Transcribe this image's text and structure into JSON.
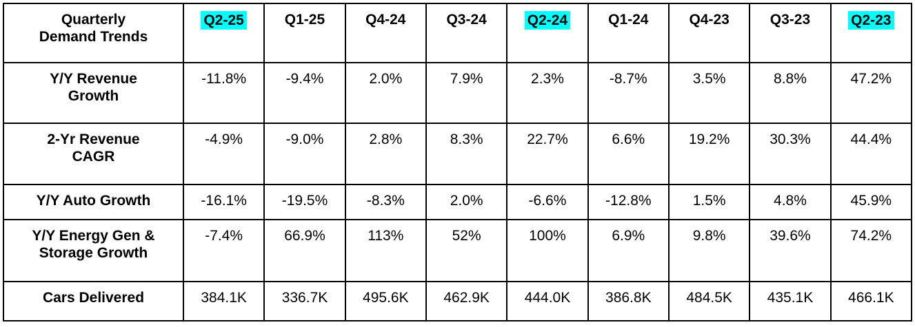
{
  "table": {
    "corner_label": "Quarterly\nDemand Trends",
    "highlight_color": "#00FFFF",
    "columns": [
      {
        "label": "Q2-25",
        "highlighted": true
      },
      {
        "label": "Q1-25",
        "highlighted": false
      },
      {
        "label": "Q4-24",
        "highlighted": false
      },
      {
        "label": "Q3-24",
        "highlighted": false
      },
      {
        "label": "Q2-24",
        "highlighted": true
      },
      {
        "label": "Q1-24",
        "highlighted": false
      },
      {
        "label": "Q4-23",
        "highlighted": false
      },
      {
        "label": "Q3-23",
        "highlighted": false
      },
      {
        "label": "Q2-23",
        "highlighted": true
      }
    ],
    "rows": [
      {
        "label": "Y/Y Revenue\nGrowth",
        "values": [
          "-11.8%",
          "-9.4%",
          "2.0%",
          "7.9%",
          "2.3%",
          "-8.7%",
          "3.5%",
          "8.8%",
          "47.2%"
        ]
      },
      {
        "label": "2-Yr Revenue\nCAGR",
        "values": [
          "-4.9%",
          "-9.0%",
          "2.8%",
          "8.3%",
          "22.7%",
          "6.6%",
          "19.2%",
          "30.3%",
          "44.4%"
        ]
      },
      {
        "label": "Y/Y Auto Growth",
        "values": [
          "-16.1%",
          "-19.5%",
          "-8.3%",
          "2.0%",
          "-6.6%",
          "-12.8%",
          "1.5%",
          "4.8%",
          "45.9%"
        ]
      },
      {
        "label": "Y/Y Energy Gen &\nStorage Growth",
        "values": [
          "-7.4%",
          "66.9%",
          "113%",
          "52%",
          "100%",
          "6.9%",
          "9.8%",
          "39.6%",
          "74.2%"
        ]
      },
      {
        "label": "Cars Delivered",
        "values": [
          "384.1K",
          "336.7K",
          "495.6K",
          "462.9K",
          "444.0K",
          "386.8K",
          "484.5K",
          "435.1K",
          "466.1K"
        ]
      }
    ]
  },
  "chart_data": {
    "type": "table",
    "title": "Quarterly Demand Trends",
    "categories": [
      "Q2-25",
      "Q1-25",
      "Q4-24",
      "Q3-24",
      "Q2-24",
      "Q1-24",
      "Q4-23",
      "Q3-23",
      "Q2-23"
    ],
    "highlighted_categories": [
      "Q2-25",
      "Q2-24",
      "Q2-23"
    ],
    "series": [
      {
        "name": "Y/Y Revenue Growth",
        "unit": "%",
        "values": [
          -11.8,
          -9.4,
          2.0,
          7.9,
          2.3,
          -8.7,
          3.5,
          8.8,
          47.2
        ]
      },
      {
        "name": "2-Yr Revenue CAGR",
        "unit": "%",
        "values": [
          -4.9,
          -9.0,
          2.8,
          8.3,
          22.7,
          6.6,
          19.2,
          30.3,
          44.4
        ]
      },
      {
        "name": "Y/Y Auto Growth",
        "unit": "%",
        "values": [
          -16.1,
          -19.5,
          -8.3,
          2.0,
          -6.6,
          -12.8,
          1.5,
          4.8,
          45.9
        ]
      },
      {
        "name": "Y/Y Energy Gen & Storage Growth",
        "unit": "%",
        "values": [
          -7.4,
          66.9,
          113,
          52,
          100,
          6.9,
          9.8,
          39.6,
          74.2
        ]
      },
      {
        "name": "Cars Delivered",
        "unit": "K",
        "values": [
          384.1,
          336.7,
          495.6,
          462.9,
          444.0,
          386.8,
          484.5,
          435.1,
          466.1
        ]
      }
    ],
    "layout": {
      "grid": true,
      "highlight_style": "cyan cell fill behind Q2 column headers"
    }
  }
}
